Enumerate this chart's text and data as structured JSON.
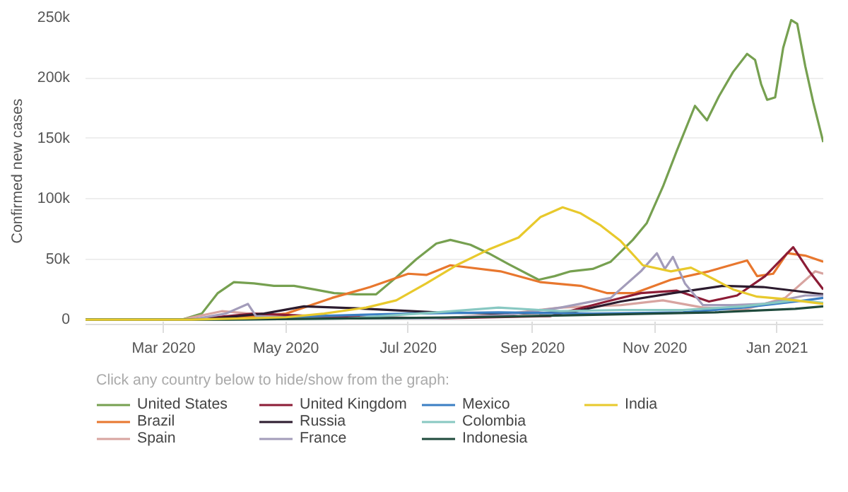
{
  "chart_data": {
    "type": "line",
    "ylabel": "Confirmed new cases",
    "legend_title": "Click any country below to hide/show from the graph:",
    "legend": "bottom",
    "grid": "y",
    "line_style": "solid",
    "xlim": [
      "2020-01-22",
      "2021-01-24"
    ],
    "xticks": [
      {
        "value": "2020-03-01",
        "label": "Mar 2020"
      },
      {
        "value": "2020-05-01",
        "label": "May 2020"
      },
      {
        "value": "2020-07-01",
        "label": "Jul 2020"
      },
      {
        "value": "2020-09-01",
        "label": "Sep 2020"
      },
      {
        "value": "2020-11-01",
        "label": "Nov 2020"
      },
      {
        "value": "2021-01-01",
        "label": "Jan 2021"
      }
    ],
    "ylim": [
      -4000,
      250000
    ],
    "yticks": [
      {
        "value": 0,
        "label": "0"
      },
      {
        "value": 50000,
        "label": "50k"
      },
      {
        "value": 100000,
        "label": "100k"
      },
      {
        "value": 150000,
        "label": "150k"
      },
      {
        "value": 200000,
        "label": "200k"
      },
      {
        "value": 250000,
        "label": "250k"
      }
    ],
    "series": [
      {
        "name": "United States",
        "color": "#76a050",
        "x": [
          "2020-01-22",
          "2020-03-10",
          "2020-03-20",
          "2020-03-28",
          "2020-04-05",
          "2020-04-15",
          "2020-04-25",
          "2020-05-05",
          "2020-05-15",
          "2020-05-25",
          "2020-06-05",
          "2020-06-15",
          "2020-06-25",
          "2020-07-05",
          "2020-07-15",
          "2020-07-22",
          "2020-08-01",
          "2020-08-10",
          "2020-08-20",
          "2020-09-04",
          "2020-09-12",
          "2020-09-20",
          "2020-10-01",
          "2020-10-10",
          "2020-10-21",
          "2020-10-28",
          "2020-11-05",
          "2020-11-12",
          "2020-11-21",
          "2020-11-27",
          "2020-12-03",
          "2020-12-10",
          "2020-12-17",
          "2020-12-21",
          "2020-12-24",
          "2020-12-27",
          "2020-12-31",
          "2021-01-04",
          "2021-01-08",
          "2021-01-11",
          "2021-01-15",
          "2021-01-19",
          "2021-01-24"
        ],
        "values": [
          0,
          0,
          5000,
          22000,
          31000,
          30000,
          28000,
          28000,
          25000,
          22000,
          21000,
          21000,
          35000,
          50000,
          63000,
          66000,
          62000,
          55000,
          46000,
          33000,
          36000,
          40000,
          42000,
          48000,
          66000,
          80000,
          110000,
          140000,
          177000,
          165000,
          185000,
          205000,
          220000,
          215000,
          195000,
          182000,
          184000,
          225000,
          248000,
          245000,
          210000,
          180000,
          147000
        ]
      },
      {
        "name": "Brazil",
        "color": "#e8772e",
        "x": [
          "2020-01-22",
          "2020-03-20",
          "2020-04-10",
          "2020-05-01",
          "2020-05-24",
          "2020-06-12",
          "2020-07-01",
          "2020-07-10",
          "2020-07-22",
          "2020-08-16",
          "2020-09-05",
          "2020-09-25",
          "2020-10-08",
          "2020-10-22",
          "2020-11-09",
          "2020-11-28",
          "2020-12-17",
          "2020-12-22",
          "2020-12-30",
          "2021-01-06",
          "2021-01-15",
          "2021-01-24"
        ],
        "values": [
          0,
          0,
          2000,
          5000,
          18000,
          27000,
          38000,
          37000,
          45000,
          40000,
          31000,
          28000,
          22000,
          22000,
          33000,
          40000,
          49000,
          36000,
          38000,
          55000,
          53000,
          48000
        ]
      },
      {
        "name": "Spain",
        "color": "#d8a4a0",
        "x": [
          "2020-01-22",
          "2020-03-10",
          "2020-03-30",
          "2020-04-20",
          "2020-05-10",
          "2020-07-15",
          "2020-08-15",
          "2020-09-15",
          "2020-10-15",
          "2020-11-05",
          "2020-11-25",
          "2020-12-15",
          "2021-01-05",
          "2021-01-20",
          "2021-01-24"
        ],
        "values": [
          0,
          0,
          7000,
          4000,
          1000,
          1000,
          4000,
          10000,
          12000,
          16000,
          10000,
          8000,
          18000,
          40000,
          38000
        ]
      },
      {
        "name": "United Kingdom",
        "color": "#8c1c36",
        "x": [
          "2020-01-22",
          "2020-03-15",
          "2020-04-15",
          "2020-05-15",
          "2020-07-15",
          "2020-09-10",
          "2020-10-08",
          "2020-10-25",
          "2020-11-12",
          "2020-11-28",
          "2020-12-12",
          "2020-12-26",
          "2021-01-09",
          "2021-01-17",
          "2021-01-24"
        ],
        "values": [
          0,
          0,
          5000,
          3000,
          1000,
          3000,
          15000,
          22000,
          24000,
          15000,
          20000,
          36000,
          60000,
          40000,
          25000
        ]
      },
      {
        "name": "Russia",
        "color": "#2c1b2e",
        "x": [
          "2020-01-22",
          "2020-03-20",
          "2020-04-20",
          "2020-05-10",
          "2020-06-10",
          "2020-07-15",
          "2020-08-20",
          "2020-09-20",
          "2020-10-15",
          "2020-11-10",
          "2020-12-05",
          "2020-12-25",
          "2021-01-24"
        ],
        "values": [
          0,
          0,
          5000,
          11000,
          9000,
          6000,
          5000,
          6000,
          15000,
          22000,
          28000,
          27000,
          21000
        ]
      },
      {
        "name": "France",
        "color": "#a39cba",
        "x": [
          "2020-01-22",
          "2020-03-15",
          "2020-04-01",
          "2020-04-12",
          "2020-04-16",
          "2020-05-10",
          "2020-07-15",
          "2020-08-20",
          "2020-09-15",
          "2020-10-10",
          "2020-10-25",
          "2020-11-02",
          "2020-11-06",
          "2020-11-10",
          "2020-11-16",
          "2020-11-25",
          "2020-12-10",
          "2020-12-25",
          "2021-01-15",
          "2021-01-24"
        ],
        "values": [
          0,
          0,
          5000,
          13000,
          3000,
          1000,
          1000,
          4000,
          10000,
          18000,
          40000,
          55000,
          42000,
          52000,
          30000,
          12000,
          12000,
          13000,
          20000,
          20000
        ]
      },
      {
        "name": "Mexico",
        "color": "#3b7fc4",
        "x": [
          "2020-01-22",
          "2020-04-01",
          "2020-05-15",
          "2020-07-01",
          "2020-08-15",
          "2020-10-01",
          "2020-11-15",
          "2020-12-15",
          "2021-01-15",
          "2021-01-24"
        ],
        "values": [
          0,
          0,
          3000,
          5000,
          6000,
          5000,
          6000,
          10000,
          16000,
          18000
        ]
      },
      {
        "name": "Colombia",
        "color": "#88c8c2",
        "x": [
          "2020-01-22",
          "2020-04-01",
          "2020-06-01",
          "2020-07-15",
          "2020-08-15",
          "2020-09-15",
          "2020-10-15",
          "2020-11-15",
          "2020-12-15",
          "2021-01-10",
          "2021-01-24"
        ],
        "values": [
          0,
          0,
          1000,
          6000,
          10000,
          7000,
          8000,
          8000,
          11000,
          16000,
          14000
        ]
      },
      {
        "name": "Indonesia",
        "color": "#1f4a3c",
        "x": [
          "2020-01-22",
          "2020-04-01",
          "2020-06-01",
          "2020-08-01",
          "2020-10-01",
          "2020-12-01",
          "2021-01-10",
          "2021-01-24"
        ],
        "values": [
          0,
          0,
          1000,
          2000,
          4000,
          6000,
          9000,
          11000
        ]
      },
      {
        "name": "India",
        "color": "#e8c92c",
        "x": [
          "2020-01-22",
          "2020-03-15",
          "2020-04-10",
          "2020-05-01",
          "2020-05-20",
          "2020-06-10",
          "2020-06-25",
          "2020-07-10",
          "2020-07-25",
          "2020-08-10",
          "2020-08-25",
          "2020-09-05",
          "2020-09-16",
          "2020-09-25",
          "2020-10-05",
          "2020-10-15",
          "2020-10-26",
          "2020-11-09",
          "2020-11-19",
          "2020-12-01",
          "2020-12-10",
          "2020-12-22",
          "2021-01-05",
          "2021-01-24"
        ],
        "values": [
          0,
          0,
          1000,
          2000,
          5000,
          10000,
          16000,
          30000,
          45000,
          58000,
          68000,
          85000,
          93000,
          88000,
          78000,
          65000,
          45000,
          40000,
          43000,
          33000,
          25000,
          19000,
          17000,
          13000
        ]
      }
    ]
  }
}
